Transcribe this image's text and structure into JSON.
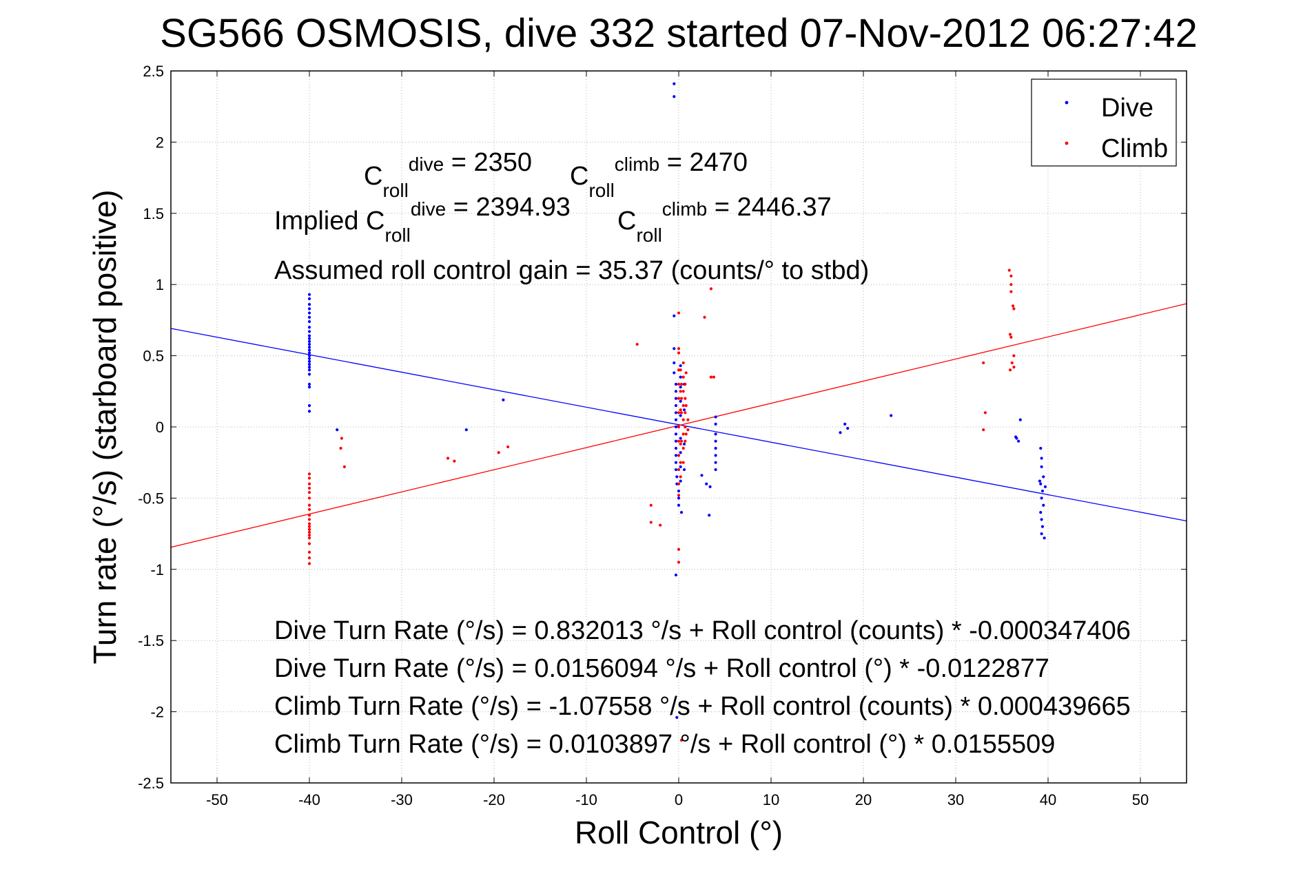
{
  "chart_data": {
    "type": "scatter",
    "title": "SG566 OSMOSIS, dive 332 started 07-Nov-2012 06:27:42",
    "xlabel": "Roll Control (°)",
    "ylabel": "Turn rate (°/s)  (starboard positive)",
    "xlim": [
      -55,
      55
    ],
    "ylim": [
      -2.5,
      2.5
    ],
    "xticks": [
      -50,
      -40,
      -30,
      -20,
      -10,
      0,
      10,
      20,
      30,
      40,
      50
    ],
    "yticks": [
      -2.5,
      -2,
      -1.5,
      -1,
      -0.5,
      0,
      0.5,
      1,
      1.5,
      2,
      2.5
    ],
    "xtick_labels": [
      "-50",
      "-40",
      "-30",
      "-20",
      "-10",
      "0",
      "10",
      "20",
      "30",
      "40",
      "50"
    ],
    "ytick_labels": [
      "-2.5",
      "-2",
      "-1.5",
      "-1",
      "-0.5",
      "0",
      "0.5",
      "1",
      "1.5",
      "2",
      "2.5"
    ],
    "grid": true,
    "legend": {
      "placement": "top-right",
      "entries": [
        "Dive",
        "Climb"
      ]
    },
    "colors": {
      "dive": "#0000ff",
      "climb": "#ff0000"
    },
    "series": [
      {
        "name": "Dive",
        "color": "#0000ff",
        "points": [
          [
            -40,
            0.93
          ],
          [
            -40,
            0.9
          ],
          [
            -40,
            0.86
          ],
          [
            -40,
            0.83
          ],
          [
            -40,
            0.8
          ],
          [
            -40,
            0.77
          ],
          [
            -40,
            0.74
          ],
          [
            -40,
            0.7
          ],
          [
            -40,
            0.67
          ],
          [
            -40,
            0.64
          ],
          [
            -40,
            0.62
          ],
          [
            -40,
            0.6
          ],
          [
            -40,
            0.58
          ],
          [
            -40,
            0.56
          ],
          [
            -40,
            0.54
          ],
          [
            -40,
            0.52
          ],
          [
            -40,
            0.5
          ],
          [
            -40,
            0.48
          ],
          [
            -40,
            0.46
          ],
          [
            -40,
            0.44
          ],
          [
            -40,
            0.42
          ],
          [
            -40,
            0.4
          ],
          [
            -40,
            0.37
          ],
          [
            -40,
            0.3
          ],
          [
            -40,
            0.28
          ],
          [
            -40,
            0.15
          ],
          [
            -40,
            0.11
          ],
          [
            -37,
            -0.02
          ],
          [
            -23,
            -0.02
          ],
          [
            -19,
            0.19
          ],
          [
            -0.5,
            2.41
          ],
          [
            -0.5,
            2.32
          ],
          [
            -0.5,
            0.78
          ],
          [
            -0.5,
            0.55
          ],
          [
            -0.5,
            0.45
          ],
          [
            -0.5,
            0.38
          ],
          [
            -0.3,
            0.3
          ],
          [
            -0.3,
            0.25
          ],
          [
            -0.3,
            0.2
          ],
          [
            -0.3,
            0.15
          ],
          [
            -0.3,
            0.1
          ],
          [
            -0.3,
            0.05
          ],
          [
            -0.3,
            0.0
          ],
          [
            -0.3,
            -0.05
          ],
          [
            -0.3,
            -0.1
          ],
          [
            -0.3,
            -0.15
          ],
          [
            -0.3,
            -0.2
          ],
          [
            -0.3,
            -0.25
          ],
          [
            -0.3,
            -0.3
          ],
          [
            -0.2,
            -0.35
          ],
          [
            -0.2,
            -0.4
          ],
          [
            0.0,
            -0.45
          ],
          [
            0.0,
            -0.5
          ],
          [
            0.0,
            -0.55
          ],
          [
            0.2,
            0.43
          ],
          [
            0.2,
            0.35
          ],
          [
            0.2,
            0.28
          ],
          [
            0.2,
            0.18
          ],
          [
            0.2,
            0.08
          ],
          [
            0.2,
            -0.08
          ],
          [
            0.2,
            -0.18
          ],
          [
            0.2,
            -0.28
          ],
          [
            0.2,
            -0.38
          ],
          [
            0.3,
            -0.6
          ],
          [
            -0.3,
            -1.04
          ],
          [
            -0.2,
            -2.04
          ],
          [
            0.6,
            0.12
          ],
          [
            0.6,
            -0.12
          ],
          [
            0.6,
            0.3
          ],
          [
            0.6,
            -0.3
          ],
          [
            2.5,
            -0.34
          ],
          [
            3.0,
            -0.4
          ],
          [
            3.3,
            -0.62
          ],
          [
            3.4,
            -0.42
          ],
          [
            4.0,
            0.07
          ],
          [
            4.0,
            0.02
          ],
          [
            4.0,
            -0.05
          ],
          [
            4.0,
            -0.1
          ],
          [
            4.0,
            -0.15
          ],
          [
            4.0,
            -0.2
          ],
          [
            4.0,
            -0.25
          ],
          [
            4.0,
            -0.3
          ],
          [
            17.5,
            -0.04
          ],
          [
            18.0,
            0.02
          ],
          [
            18.3,
            -0.01
          ],
          [
            23.0,
            0.08
          ],
          [
            36.5,
            -0.07
          ],
          [
            36.8,
            -0.1
          ],
          [
            37.0,
            0.05
          ],
          [
            36.6,
            -0.08
          ],
          [
            39.2,
            -0.15
          ],
          [
            39.3,
            -0.22
          ],
          [
            39.3,
            -0.28
          ],
          [
            39.5,
            -0.35
          ],
          [
            39.2,
            -0.4
          ],
          [
            39.4,
            -0.45
          ],
          [
            39.3,
            -0.5
          ],
          [
            39.5,
            -0.55
          ],
          [
            39.2,
            -0.6
          ],
          [
            39.3,
            -0.65
          ],
          [
            39.4,
            -0.7
          ],
          [
            39.3,
            -0.75
          ],
          [
            39.6,
            -0.78
          ],
          [
            39.1,
            -0.38
          ],
          [
            39.7,
            -0.42
          ]
        ],
        "fit": {
          "intercept": 0.0156094,
          "slope": -0.0122877
        }
      },
      {
        "name": "Climb",
        "color": "#ff0000",
        "points": [
          [
            -40,
            -0.33
          ],
          [
            -40,
            -0.36
          ],
          [
            -40,
            -0.4
          ],
          [
            -40,
            -0.43
          ],
          [
            -40,
            -0.46
          ],
          [
            -40,
            -0.5
          ],
          [
            -40,
            -0.55
          ],
          [
            -40,
            -0.58
          ],
          [
            -40,
            -0.62
          ],
          [
            -40,
            -0.65
          ],
          [
            -40,
            -0.68
          ],
          [
            -40,
            -0.7
          ],
          [
            -40,
            -0.72
          ],
          [
            -40,
            -0.74
          ],
          [
            -40,
            -0.76
          ],
          [
            -40,
            -0.78
          ],
          [
            -40,
            -0.82
          ],
          [
            -40,
            -0.88
          ],
          [
            -40,
            -0.92
          ],
          [
            -40,
            -0.96
          ],
          [
            -36.5,
            -0.08
          ],
          [
            -36.6,
            -0.15
          ],
          [
            -36.2,
            -0.28
          ],
          [
            -25,
            -0.22
          ],
          [
            -24.3,
            -0.24
          ],
          [
            -19.5,
            -0.18
          ],
          [
            -18.5,
            -0.14
          ],
          [
            -3.0,
            -0.55
          ],
          [
            -3.0,
            -0.67
          ],
          [
            -2.0,
            -0.69
          ],
          [
            0.0,
            0.8
          ],
          [
            0.0,
            0.52
          ],
          [
            0.0,
            0.4
          ],
          [
            0.0,
            0.3
          ],
          [
            0.0,
            0.2
          ],
          [
            0.0,
            0.1
          ],
          [
            0.0,
            0.0
          ],
          [
            0.0,
            -0.1
          ],
          [
            0.0,
            -0.2
          ],
          [
            0.0,
            -0.3
          ],
          [
            0.0,
            -0.4
          ],
          [
            0.0,
            -0.48
          ],
          [
            0.0,
            -0.86
          ],
          [
            0.0,
            -0.95
          ],
          [
            0.2,
            0.4
          ],
          [
            0.2,
            0.25
          ],
          [
            0.2,
            0.12
          ],
          [
            0.2,
            -0.12
          ],
          [
            0.2,
            -0.25
          ],
          [
            0.2,
            -0.35
          ],
          [
            0.3,
            0.3
          ],
          [
            0.3,
            0.2
          ],
          [
            0.3,
            0.1
          ],
          [
            0.3,
            -0.1
          ],
          [
            0.5,
            0.45
          ],
          [
            0.5,
            0.35
          ],
          [
            0.5,
            0.25
          ],
          [
            0.5,
            0.15
          ],
          [
            0.5,
            0.05
          ],
          [
            0.5,
            -0.05
          ],
          [
            0.5,
            -0.15
          ],
          [
            0.5,
            -0.25
          ],
          [
            0.7,
            0.3
          ],
          [
            0.7,
            0.2
          ],
          [
            0.7,
            0.1
          ],
          [
            0.7,
            0.0
          ],
          [
            0.7,
            -0.1
          ],
          [
            0.8,
            0.15
          ],
          [
            0.8,
            -0.05
          ],
          [
            0.8,
            0.38
          ],
          [
            1.0,
            0.05
          ],
          [
            1.0,
            -0.02
          ],
          [
            0.0,
            0.55
          ],
          [
            0.3,
            -2.2
          ],
          [
            2.8,
            0.77
          ],
          [
            3.5,
            0.97
          ],
          [
            3.8,
            0.35
          ],
          [
            3.5,
            0.35
          ],
          [
            33.0,
            0.45
          ],
          [
            33.2,
            0.1
          ],
          [
            33.0,
            -0.02
          ],
          [
            35.8,
            1.1
          ],
          [
            36.0,
            1.06
          ],
          [
            36.0,
            1.0
          ],
          [
            36.0,
            0.95
          ],
          [
            36.2,
            0.85
          ],
          [
            36.3,
            0.83
          ],
          [
            35.9,
            0.65
          ],
          [
            36.0,
            0.63
          ],
          [
            36.3,
            0.5
          ],
          [
            36.3,
            0.42
          ],
          [
            35.9,
            0.4
          ],
          [
            -4.5,
            0.58
          ],
          [
            36.1,
            0.45
          ]
        ],
        "fit": {
          "intercept": 0.0103897,
          "slope": 0.0155509
        }
      }
    ],
    "annotations": [
      {
        "parts": [
          {
            "t": "C"
          },
          {
            "t": "roll",
            "dy": 1
          },
          {
            "t": "dive",
            "dy": -1
          },
          {
            "t": " = 2350"
          }
        ]
      },
      {
        "parts": [
          {
            "t": "C"
          },
          {
            "t": "roll",
            "dy": 1
          },
          {
            "t": "climb",
            "dy": -1
          },
          {
            "t": " = 2470"
          }
        ]
      },
      {
        "parts": [
          {
            "t": "Implied C"
          },
          {
            "t": "roll",
            "dy": 1
          },
          {
            "t": "dive",
            "dy": -1
          },
          {
            "t": " = 2394.93"
          }
        ]
      },
      {
        "parts": [
          {
            "t": "C"
          },
          {
            "t": "roll",
            "dy": 1
          },
          {
            "t": "climb",
            "dy": -1
          },
          {
            "t": " = 2446.37"
          }
        ]
      },
      "Assumed roll control gain = 35.37 (counts/° to stbd)",
      "Dive Turn Rate (°/s) = 0.832013 °/s + Roll control (counts) * -0.000347406",
      "Dive Turn Rate (°/s) = 0.0156094 °/s + Roll control (°) * -0.0122877",
      "Climb Turn Rate (°/s) = -1.07558 °/s + Roll control (counts) * 0.000439665",
      "Climb Turn Rate (°/s) = 0.0103897 °/s + Roll control (°) * 0.0155509"
    ]
  }
}
